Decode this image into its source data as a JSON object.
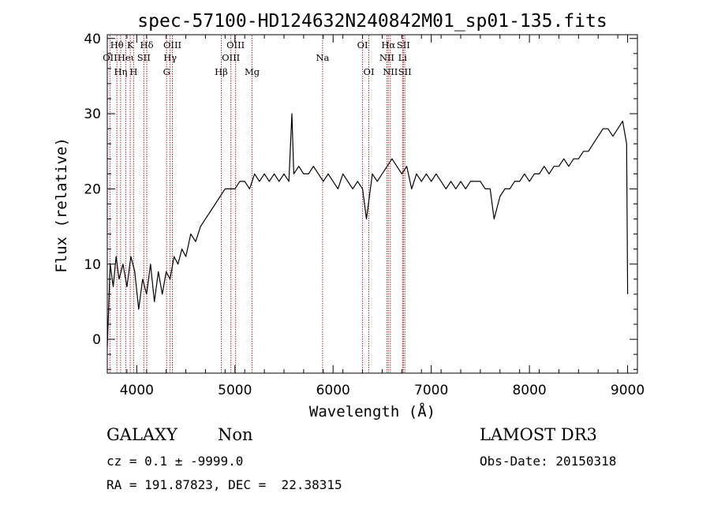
{
  "chart_data": {
    "type": "line",
    "title": "spec-57100-HD124632N240842M01_sp01-135.fits",
    "xlabel": "Wavelength (Å)",
    "ylabel": "Flux (relative)",
    "xlim": [
      3700,
      9100
    ],
    "ylim": [
      -4.5,
      40.5
    ],
    "x_ticks": [
      4000,
      5000,
      6000,
      7000,
      8000,
      9000
    ],
    "y_ticks": [
      0,
      10,
      20,
      30,
      40
    ],
    "spectrum": {
      "name": "flux",
      "color": "#000000",
      "x": [
        3700,
        3730,
        3760,
        3790,
        3820,
        3860,
        3900,
        3940,
        3980,
        4020,
        4060,
        4100,
        4140,
        4180,
        4220,
        4260,
        4300,
        4340,
        4380,
        4420,
        4460,
        4500,
        4550,
        4600,
        4650,
        4700,
        4750,
        4800,
        4850,
        4900,
        4950,
        5000,
        5050,
        5100,
        5150,
        5200,
        5250,
        5300,
        5350,
        5400,
        5450,
        5500,
        5550,
        5580,
        5600,
        5650,
        5700,
        5750,
        5800,
        5850,
        5900,
        5950,
        6000,
        6050,
        6100,
        6150,
        6200,
        6250,
        6300,
        6340,
        6400,
        6450,
        6500,
        6550,
        6600,
        6650,
        6700,
        6750,
        6800,
        6850,
        6900,
        6950,
        7000,
        7050,
        7100,
        7150,
        7200,
        7250,
        7300,
        7350,
        7400,
        7450,
        7500,
        7550,
        7600,
        7640,
        7700,
        7750,
        7800,
        7850,
        7900,
        7950,
        8000,
        8050,
        8100,
        8150,
        8200,
        8250,
        8300,
        8350,
        8400,
        8450,
        8500,
        8550,
        8600,
        8650,
        8700,
        8750,
        8800,
        8850,
        8900,
        8950,
        8990,
        9000
      ],
      "y": [
        -1,
        10,
        7,
        11,
        8,
        10,
        7,
        11,
        9,
        4,
        8,
        6,
        10,
        5,
        9,
        6,
        9,
        8,
        11,
        10,
        12,
        11,
        14,
        13,
        15,
        16,
        17,
        18,
        19,
        20,
        20,
        20,
        21,
        21,
        20,
        22,
        21,
        22,
        21,
        22,
        21,
        22,
        21,
        30,
        22,
        23,
        22,
        22,
        23,
        22,
        21,
        22,
        21,
        20,
        22,
        21,
        20,
        21,
        20,
        16,
        22,
        21,
        22,
        23,
        24,
        23,
        22,
        23,
        20,
        22,
        21,
        22,
        21,
        22,
        21,
        20,
        21,
        20,
        21,
        20,
        21,
        21,
        21,
        20,
        20,
        16,
        19,
        20,
        20,
        21,
        21,
        22,
        21,
        22,
        22,
        23,
        22,
        23,
        23,
        24,
        23,
        24,
        24,
        25,
        25,
        26,
        27,
        28,
        28,
        27,
        28,
        29,
        26,
        6
      ]
    },
    "emission_lines": [
      {
        "label": "OII",
        "wavelength": 3727,
        "row": 2
      },
      {
        "label": "Hθ",
        "wavelength": 3798,
        "row": 1
      },
      {
        "label": "Hη",
        "wavelength": 3836,
        "row": 3
      },
      {
        "label": "Heι",
        "wavelength": 3889,
        "row": 2
      },
      {
        "label": "K",
        "wavelength": 3934,
        "row": 1
      },
      {
        "label": "H",
        "wavelength": 3968,
        "row": 3
      },
      {
        "label": "Hδ",
        "wavelength": 4102,
        "row": 1
      },
      {
        "label": "SII",
        "wavelength": 4072,
        "row": 2
      },
      {
        "label": "G",
        "wavelength": 4304,
        "row": 3
      },
      {
        "label": "Hγ",
        "wavelength": 4340,
        "row": 2
      },
      {
        "label": "OIII",
        "wavelength": 4363,
        "row": 1
      },
      {
        "label": "Hβ",
        "wavelength": 4861,
        "row": 3
      },
      {
        "label": "OIII",
        "wavelength": 4959,
        "row": 2
      },
      {
        "label": "OIII",
        "wavelength": 5007,
        "row": 1
      },
      {
        "label": "Mg",
        "wavelength": 5175,
        "row": 3
      },
      {
        "label": "Na",
        "wavelength": 5893,
        "row": 2
      },
      {
        "label": "OI",
        "wavelength": 6300,
        "row": 1
      },
      {
        "label": "OI",
        "wavelength": 6364,
        "row": 3
      },
      {
        "label": "Hα",
        "wavelength": 6563,
        "row": 1
      },
      {
        "label": "NII",
        "wavelength": 6548,
        "row": 2
      },
      {
        "label": "NII",
        "wavelength": 6583,
        "row": 3
      },
      {
        "label": "SII",
        "wavelength": 6716,
        "row": 1
      },
      {
        "label": "Li",
        "wavelength": 6708,
        "row": 2
      },
      {
        "label": "SII",
        "wavelength": 6731,
        "row": 3
      }
    ]
  },
  "info": {
    "class": "GALAXY",
    "subclass": "Non",
    "survey": "LAMOST DR3",
    "cz": "cz = 0.1 ± -9999.0",
    "obs_date": "Obs-Date: 20150318",
    "coords": "RA = 191.87823, DEC =  22.38315"
  }
}
